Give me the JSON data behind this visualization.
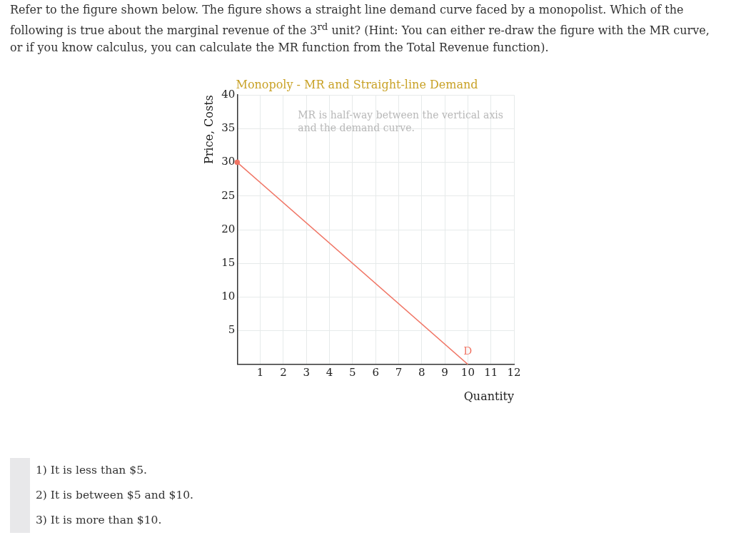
{
  "chart_data": {
    "type": "line",
    "title": "Monopoly - MR and Straight-line Demand",
    "xlabel": "Quantity",
    "ylabel": "Price, Costs",
    "annotations": [
      "Refer to the figure shown below. The figure shows a straight line demand curve faced by a monopolist. Which of the following is true about the marginal revenue of the 3$^{rd}$ unit? (Hint: You can either re-draw the figure with the MR curve, or if you know calculus, you can calculate the MR function from the Total Revenue function).",
      "1) It is less than $5.",
      "2) It is between $5 and $10.",
      "3) It is more than $10.",
      "MR is half-way between the vertical axis and the demand curve."
    ],
    "series": [
      {
        "name": "D",
        "color": "#f07565",
        "x": [
          0,
          10
        ],
        "values": [
          30,
          0
        ]
      }
    ],
    "xlim": [
      0,
      12
    ],
    "xticks": [
      1,
      2,
      3,
      4,
      5,
      6,
      7,
      8,
      9,
      10,
      11,
      12
    ],
    "ylim": [
      0,
      40
    ],
    "yticks": [
      5,
      10,
      15,
      20,
      25,
      30,
      35,
      40
    ],
    "grid": true,
    "legend": false
  }
}
